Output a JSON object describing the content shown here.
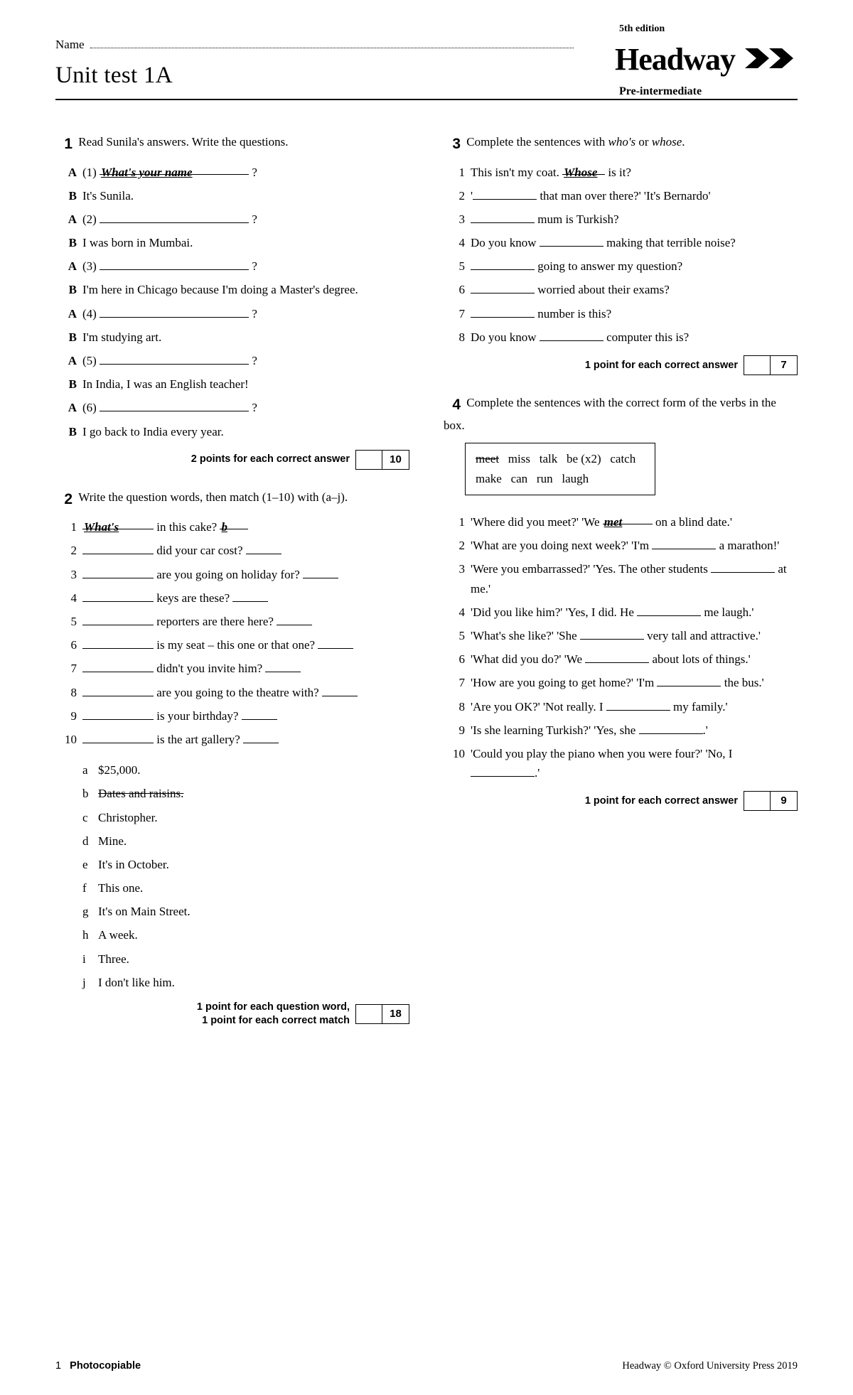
{
  "header": {
    "name_label": "Name",
    "title": "Unit test 1A",
    "edition": "5th edition",
    "logo": "Headway",
    "level": "Pre-intermediate"
  },
  "q1": {
    "intro": "Read Sunila's answers. Write the questions.",
    "items": [
      {
        "l": "A",
        "pre": "(1)",
        "given": "What's your name",
        "post": "?"
      },
      {
        "l": "B",
        "text": "It's Sunila."
      },
      {
        "l": "A",
        "pre": "(2)",
        "blank": true,
        "post": "?"
      },
      {
        "l": "B",
        "text": "I was born in Mumbai."
      },
      {
        "l": "A",
        "pre": "(3)",
        "blank": true,
        "post": "?"
      },
      {
        "l": "B",
        "text": "I'm here in Chicago because I'm doing a Master's degree."
      },
      {
        "l": "A",
        "pre": "(4)",
        "blank": true,
        "post": "?"
      },
      {
        "l": "B",
        "text": "I'm studying art."
      },
      {
        "l": "A",
        "pre": "(5)",
        "blank": true,
        "post": "?"
      },
      {
        "l": "B",
        "text": "In India, I was an English teacher!"
      },
      {
        "l": "A",
        "pre": "(6)",
        "blank": true,
        "post": "?"
      },
      {
        "l": "B",
        "text": "I go back to India every year."
      }
    ],
    "score_label": "2 points for each correct answer",
    "score_pts": "10"
  },
  "q2": {
    "intro": "Write the question words, then match (1–10) with (a–j).",
    "items": [
      {
        "n": "1",
        "given1": "What's",
        "mid": " in this cake? ",
        "given2": "b"
      },
      {
        "n": "2",
        "mid": " did your car cost? "
      },
      {
        "n": "3",
        "mid": " are you going on holiday for? "
      },
      {
        "n": "4",
        "mid": " keys are these? "
      },
      {
        "n": "5",
        "mid": " reporters are there here? "
      },
      {
        "n": "6",
        "mid": " is my seat – this one or that one? "
      },
      {
        "n": "7",
        "mid": " didn't you invite him? "
      },
      {
        "n": "8",
        "mid": " are you going to the theatre with? "
      },
      {
        "n": "9",
        "mid": " is your birthday? "
      },
      {
        "n": "10",
        "mid": " is the art gallery? "
      }
    ],
    "answers": [
      {
        "l": "a",
        "t": "$25,000."
      },
      {
        "l": "b",
        "t": "Dates and raisins.",
        "strike": true
      },
      {
        "l": "c",
        "t": "Christopher."
      },
      {
        "l": "d",
        "t": "Mine."
      },
      {
        "l": "e",
        "t": "It's in October."
      },
      {
        "l": "f",
        "t": "This one."
      },
      {
        "l": "g",
        "t": "It's on Main Street."
      },
      {
        "l": "h",
        "t": "A week."
      },
      {
        "l": "i",
        "t": "Three."
      },
      {
        "l": "j",
        "t": "I don't like him."
      }
    ],
    "score_label": "1 point for each question word,\n1 point for each correct match",
    "score_pts": "18"
  },
  "q3": {
    "intro_a": "Complete the sentences with ",
    "intro_b": "who's",
    "intro_c": " or ",
    "intro_d": "whose",
    "intro_e": ".",
    "items": [
      {
        "n": "1",
        "pre": "This isn't my coat. ",
        "given": "Whose",
        "post": " is it?"
      },
      {
        "n": "2",
        "pre": "'",
        "blank": 90,
        "post": " that man over there?' 'It's Bernardo'"
      },
      {
        "n": "3",
        "pre": "",
        "blank": 90,
        "post": " mum is Turkish?"
      },
      {
        "n": "4",
        "pre": "Do you know ",
        "blank": 90,
        "post": " making that terrible noise?"
      },
      {
        "n": "5",
        "pre": "",
        "blank": 90,
        "post": " going to answer my question?"
      },
      {
        "n": "6",
        "pre": "",
        "blank": 90,
        "post": " worried about their exams?"
      },
      {
        "n": "7",
        "pre": "",
        "blank": 90,
        "post": " number is this?"
      },
      {
        "n": "8",
        "pre": "Do you know ",
        "blank": 90,
        "post": " computer this is?"
      }
    ],
    "score_label": "1 point for each correct answer",
    "score_pts": "7"
  },
  "q4": {
    "intro": "Complete the sentences with the correct form of the verbs in the box.",
    "box": [
      {
        "t": "meet",
        "strike": true
      },
      {
        "t": "miss"
      },
      {
        "t": "talk"
      },
      {
        "t": "be (x2)"
      },
      {
        "t": "catch"
      },
      {
        "br": true
      },
      {
        "t": "make"
      },
      {
        "t": "can"
      },
      {
        "t": "run"
      },
      {
        "t": "laugh"
      }
    ],
    "items": [
      {
        "n": "1",
        "pre": "'Where did you meet?' 'We ",
        "given": "met",
        "post": " on a blind date.'"
      },
      {
        "n": "2",
        "pre": "'What are you doing next week?' 'I'm ",
        "blank": 90,
        "post": " a marathon!'"
      },
      {
        "n": "3",
        "pre": "'Were you embarrassed?' 'Yes. The other students ",
        "blank": 90,
        "post": " at me.'"
      },
      {
        "n": "4",
        "pre": "'Did you like him?' 'Yes, I did. He ",
        "blank": 90,
        "post": " me laugh.'"
      },
      {
        "n": "5",
        "pre": "'What's she like?' 'She ",
        "blank": 90,
        "post": " very tall and attractive.'"
      },
      {
        "n": "6",
        "pre": "'What did you do?' 'We ",
        "blank": 90,
        "post": " about lots of things.'"
      },
      {
        "n": "7",
        "pre": "'How are you going to get home?' 'I'm ",
        "blank": 90,
        "post": " the bus.'"
      },
      {
        "n": "8",
        "pre": "'Are you OK?' 'Not really. I ",
        "blank": 90,
        "post": " my family.'"
      },
      {
        "n": "9",
        "pre": "'Is she learning Turkish?' 'Yes, she ",
        "blank": 90,
        "post": ".'"
      },
      {
        "n": "10",
        "pre": "'Could you play the piano when you were four?' 'No, I ",
        "blank": 90,
        "post": ".'"
      }
    ],
    "score_label": "1 point for each correct answer",
    "score_pts": "9"
  },
  "footer": {
    "page": "1",
    "photocopiable": "Photocopiable",
    "copyright": "Headway © Oxford University Press 2019"
  }
}
